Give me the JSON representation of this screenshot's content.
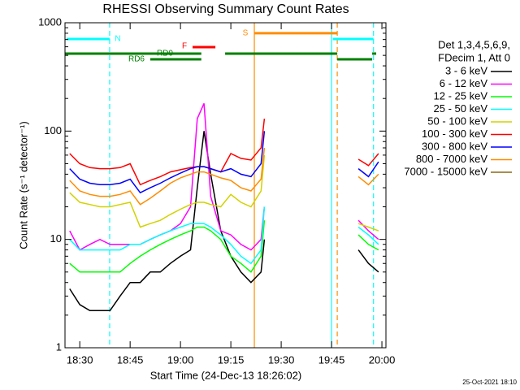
{
  "chart_data": {
    "type": "line",
    "title": "RHESSI Observing Summary Count Rates",
    "x_label": "Start Time (24-Dec-13 18:26:02)",
    "y_label": "Count Rate (s⁻¹ detector⁻¹)",
    "legend_header": [
      "Det 1,3,4,5,6,9,",
      "FDecim 1, Att 0"
    ],
    "footer": "25-Oct-2021 18:10",
    "log_y": true,
    "xlim": [
      25.6,
      121.2
    ],
    "xticks": [
      {
        "value": 30,
        "label": "18:30"
      },
      {
        "value": 45,
        "label": "18:45"
      },
      {
        "value": 60,
        "label": "19:00"
      },
      {
        "value": 75,
        "label": "19:15"
      },
      {
        "value": 90,
        "label": "19:30"
      },
      {
        "value": 105,
        "label": "19:45"
      },
      {
        "value": 120,
        "label": "20:00"
      }
    ],
    "ylim": [
      1,
      1000
    ],
    "yticks": [
      1,
      10,
      100,
      1000
    ],
    "x": [
      27,
      30,
      33,
      36,
      39,
      42,
      45,
      48,
      51,
      54,
      57,
      60,
      63,
      65,
      67,
      69,
      72,
      75,
      78,
      81,
      84,
      85,
      100,
      113,
      116,
      119
    ],
    "series": [
      {
        "name": "3 - 6 keV",
        "color": "#000000",
        "values": [
          3.5,
          2.5,
          2.2,
          2.2,
          2.2,
          3,
          4,
          4,
          5,
          5,
          6,
          7,
          8,
          30,
          100,
          40,
          12,
          7,
          5,
          4,
          5,
          10,
          null,
          8,
          6,
          5
        ]
      },
      {
        "name": "6 - 12 keV",
        "color": "#ff00ff",
        "values": [
          12,
          8,
          9,
          10,
          9,
          9,
          9,
          9,
          10,
          11,
          12,
          14,
          20,
          130,
          180,
          25,
          12,
          11,
          9,
          8,
          10,
          20,
          null,
          15,
          12,
          10
        ]
      },
      {
        "name": "12 - 25 keV",
        "color": "#00ff00",
        "values": [
          6,
          5,
          5,
          5,
          5,
          5,
          6,
          7,
          8,
          9,
          10,
          11,
          12,
          13,
          13,
          12,
          10,
          7,
          6,
          5,
          7,
          15,
          null,
          11,
          9,
          8
        ]
      },
      {
        "name": "25 - 50 keV",
        "color": "#00ffff",
        "values": [
          10,
          8,
          8,
          8,
          8,
          8,
          9,
          9,
          10,
          11,
          12,
          13,
          14,
          14,
          14,
          13,
          11,
          9,
          7,
          6,
          8,
          20,
          null,
          13,
          11,
          9
        ]
      },
      {
        "name": "50 - 100 keV",
        "color": "#d2d200",
        "values": [
          27,
          22,
          21,
          20,
          20,
          21,
          22,
          13,
          14,
          15,
          17,
          19,
          21,
          22,
          22,
          21,
          20,
          26,
          22,
          20,
          28,
          60,
          null,
          14,
          13,
          12
        ]
      },
      {
        "name": "100 - 300 keV",
        "color": "#ff0000",
        "values": [
          62,
          50,
          46,
          45,
          45,
          46,
          50,
          32,
          35,
          38,
          42,
          44,
          46,
          47,
          47,
          45,
          42,
          62,
          56,
          54,
          70,
          130,
          null,
          55,
          48,
          62
        ]
      },
      {
        "name": "300 - 800 keV",
        "color": "#0000ff",
        "values": [
          45,
          36,
          33,
          32,
          32,
          33,
          36,
          27,
          30,
          33,
          37,
          41,
          45,
          47,
          47,
          45,
          42,
          45,
          40,
          38,
          50,
          100,
          null,
          45,
          38,
          52
        ]
      },
      {
        "name": "800 - 7000 keV",
        "color": "#ff8c00",
        "values": [
          35,
          28,
          26,
          25,
          25,
          26,
          28,
          21,
          24,
          28,
          33,
          37,
          40,
          42,
          42,
          40,
          37,
          35,
          30,
          28,
          36,
          70,
          null,
          38,
          32,
          40
        ]
      },
      {
        "name": "7000 - 15000 keV",
        "color": "#8b6914",
        "values": [
          null,
          null,
          null,
          null,
          null,
          null,
          null,
          null,
          null,
          null,
          null,
          null,
          null,
          null,
          null,
          null,
          null,
          null,
          null,
          null,
          null,
          null,
          null,
          null,
          null,
          null
        ]
      }
    ],
    "flags": [
      {
        "label": "N",
        "color": "#00ffff",
        "level": 708,
        "segments": [
          [
            26.1,
            38.9
          ],
          [
            105.4,
            117.5
          ]
        ]
      },
      {
        "label": "RD0",
        "color": "#008000",
        "level": 519,
        "segments": [
          [
            25.6,
            66.2
          ],
          [
            73.3,
            106.7
          ],
          [
            117.1,
            118.3
          ]
        ]
      },
      {
        "label": "RD6",
        "color": "#008000",
        "level": 460,
        "segments": [
          [
            51,
            66.2
          ],
          [
            106.7,
            117.1
          ]
        ]
      },
      {
        "label": "F",
        "color": "#ff0000",
        "level": 596,
        "segments": [
          [
            63.6,
            70.4
          ]
        ]
      },
      {
        "label": "S",
        "color": "#ff8c00",
        "level": 800,
        "segments": [
          [
            82,
            106.7
          ]
        ]
      }
    ],
    "markers": [
      {
        "x": 38.9,
        "color": "#00ffff",
        "dashed": true
      },
      {
        "x": 105,
        "color": "#00ffff",
        "dashed": false
      },
      {
        "x": 117.5,
        "color": "#00ffff",
        "dashed": true
      },
      {
        "x": 82,
        "color": "#ff8c00",
        "dashed": false
      },
      {
        "x": 106.7,
        "color": "#ff8c00",
        "dashed": true
      }
    ]
  }
}
